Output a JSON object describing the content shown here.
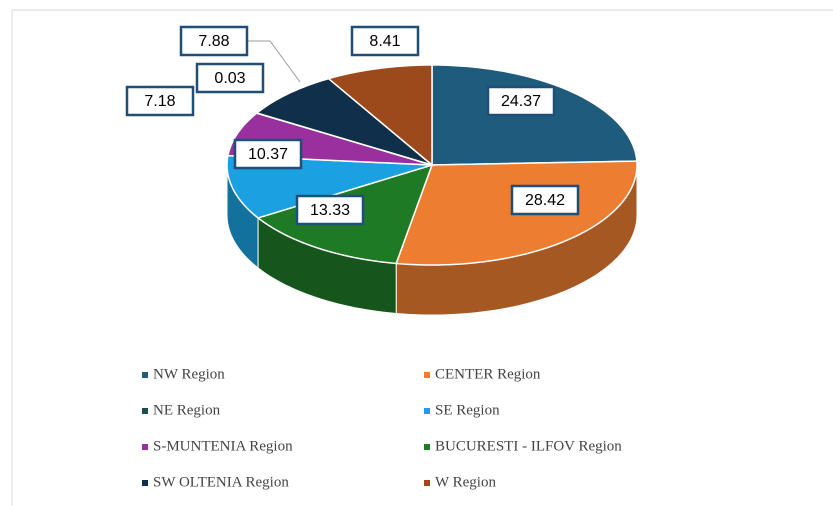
{
  "chart_data": {
    "type": "pie3d",
    "categories": [
      "NW Region",
      "CENTER  Region",
      "NE  Region",
      "SE  Region",
      "S-MUNTENIA  Region",
      "BUCURESTI - ILFOV  Region",
      "SW OLTENIA  Region",
      "W  Region"
    ],
    "values": [
      24.37,
      28.42,
      0.03,
      10.37,
      7.18,
      13.33,
      7.88,
      8.41
    ],
    "colors": [
      "#1f5b7c",
      "#ed7d31",
      "#17504f",
      "#1ba1e2",
      "#9a2f9e",
      "#1f7a26",
      "#0f2f4a",
      "#9c4a1c"
    ],
    "legend": "bottom"
  }
}
